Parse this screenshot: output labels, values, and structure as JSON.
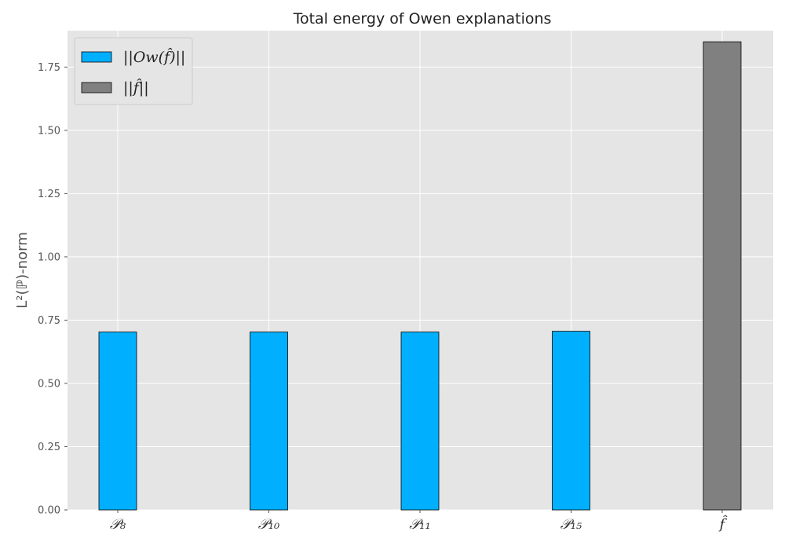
{
  "chart_data": {
    "type": "bar",
    "title": "Total energy of Owen explanations",
    "xlabel": "",
    "ylabel": "L²(ℙ)-norm",
    "categories": [
      "𝒫₈",
      "𝒫₁₀",
      "𝒫₁₁",
      "𝒫₁₅",
      "f̂"
    ],
    "series": [
      {
        "name": "||Ow(f̂)||",
        "color": "#00b0ff",
        "values": [
          0.703,
          0.703,
          0.703,
          0.706,
          null
        ]
      },
      {
        "name": "||f̂||",
        "color": "#808080",
        "values": [
          null,
          null,
          null,
          null,
          1.85
        ]
      }
    ],
    "ylim": [
      0,
      1.894
    ],
    "yticks": [
      "0.00",
      "0.25",
      "0.50",
      "0.75",
      "1.00",
      "1.25",
      "1.50",
      "1.75"
    ],
    "grid": true,
    "legend": "top-left",
    "colors": {
      "background": "#e5e5e5",
      "grid": "#ffffff",
      "edge": "#000000",
      "text": "#555555"
    }
  }
}
